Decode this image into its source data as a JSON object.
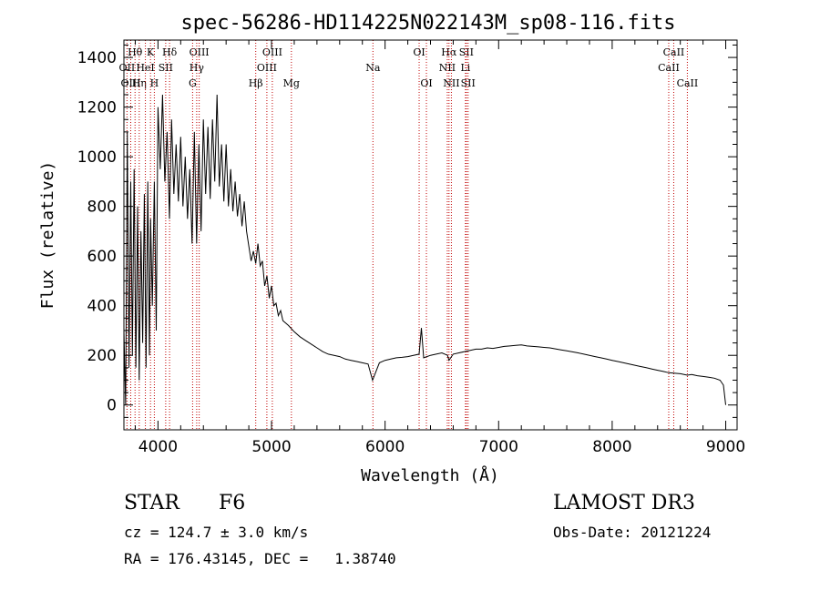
{
  "chart_data": {
    "type": "line",
    "title": "spec-56286-HD114225N022143M_sp08-116.fits",
    "xlabel": "Wavelength (Å)",
    "ylabel": "Flux (relative)",
    "xlim": [
      3700,
      9100
    ],
    "ylim": [
      -100,
      1470
    ],
    "xticks": [
      4000,
      5000,
      6000,
      7000,
      8000,
      9000
    ],
    "yticks": [
      0,
      200,
      400,
      600,
      800,
      1000,
      1200,
      1400
    ],
    "grid": false,
    "series": [
      {
        "name": "spectrum",
        "x": [
          3700,
          3715,
          3730,
          3745,
          3760,
          3775,
          3790,
          3805,
          3820,
          3835,
          3850,
          3865,
          3880,
          3895,
          3910,
          3925,
          3935,
          3950,
          3968,
          3985,
          4000,
          4020,
          4040,
          4060,
          4080,
          4101,
          4120,
          4140,
          4160,
          4180,
          4200,
          4220,
          4240,
          4260,
          4280,
          4300,
          4320,
          4340,
          4360,
          4380,
          4400,
          4420,
          4440,
          4460,
          4480,
          4500,
          4520,
          4540,
          4560,
          4580,
          4600,
          4620,
          4640,
          4660,
          4680,
          4700,
          4720,
          4740,
          4760,
          4780,
          4800,
          4820,
          4840,
          4861,
          4880,
          4900,
          4920,
          4940,
          4960,
          4980,
          5000,
          5020,
          5040,
          5060,
          5080,
          5100,
          5150,
          5200,
          5250,
          5300,
          5350,
          5400,
          5450,
          5500,
          5550,
          5600,
          5650,
          5700,
          5750,
          5800,
          5850,
          5890,
          5950,
          6000,
          6050,
          6100,
          6150,
          6200,
          6250,
          6300,
          6320,
          6340,
          6400,
          6450,
          6500,
          6550,
          6563,
          6600,
          6650,
          6700,
          6750,
          6800,
          6850,
          6900,
          6950,
          7000,
          7050,
          7100,
          7150,
          7200,
          7250,
          7300,
          7350,
          7400,
          7450,
          7500,
          7550,
          7600,
          7650,
          7700,
          7750,
          7800,
          7850,
          7900,
          7950,
          8000,
          8050,
          8100,
          8150,
          8200,
          8250,
          8300,
          8350,
          8400,
          8450,
          8498,
          8542,
          8600,
          8662,
          8700,
          8750,
          8800,
          8850,
          8900,
          8950,
          8980,
          9000
        ],
        "y": [
          300,
          0,
          1100,
          150,
          900,
          200,
          950,
          150,
          800,
          100,
          700,
          250,
          850,
          150,
          900,
          200,
          750,
          400,
          900,
          300,
          1200,
          950,
          1250,
          900,
          1100,
          750,
          1150,
          850,
          1050,
          820,
          1080,
          800,
          1000,
          750,
          950,
          650,
          1100,
          650,
          1050,
          700,
          1150,
          850,
          1120,
          830,
          1150,
          900,
          1250,
          880,
          1050,
          820,
          1050,
          800,
          950,
          780,
          900,
          760,
          850,
          720,
          820,
          700,
          640,
          580,
          620,
          570,
          650,
          560,
          580,
          480,
          520,
          430,
          480,
          400,
          410,
          360,
          380,
          340,
          320,
          295,
          275,
          260,
          245,
          230,
          215,
          205,
          200,
          195,
          185,
          180,
          175,
          170,
          165,
          100,
          170,
          180,
          185,
          190,
          192,
          195,
          200,
          205,
          310,
          190,
          200,
          205,
          210,
          200,
          180,
          205,
          210,
          215,
          220,
          225,
          225,
          230,
          228,
          232,
          236,
          238,
          240,
          242,
          238,
          236,
          234,
          232,
          230,
          226,
          222,
          218,
          214,
          210,
          205,
          200,
          195,
          190,
          185,
          180,
          175,
          170,
          165,
          160,
          155,
          150,
          145,
          140,
          135,
          130,
          128,
          126,
          120,
          123,
          118,
          115,
          112,
          108,
          100,
          80,
          0
        ]
      }
    ],
    "lines": [
      {
        "label": "Hθ",
        "x": 3798,
        "row": 1
      },
      {
        "label": "OII",
        "x": 3727,
        "row": 2
      },
      {
        "label": "OIII",
        "x": 3760,
        "row": 3
      },
      {
        "label": "Hη",
        "x": 3835,
        "row": 3
      },
      {
        "label": "HeI",
        "x": 3889,
        "row": 2
      },
      {
        "label": "K",
        "x": 3934,
        "row": 1
      },
      {
        "label": "H",
        "x": 3968,
        "row": 3
      },
      {
        "label": "SII",
        "x": 4068,
        "row": 2
      },
      {
        "label": "Hδ",
        "x": 4102,
        "row": 1
      },
      {
        "label": "OIII",
        "x": 4363,
        "row": 1
      },
      {
        "label": "Hγ",
        "x": 4341,
        "row": 2
      },
      {
        "label": "G",
        "x": 4305,
        "row": 3
      },
      {
        "label": "Hβ",
        "x": 4861,
        "row": 3
      },
      {
        "label": "OIII",
        "x": 5007,
        "row": 1
      },
      {
        "label": "OIII",
        "x": 4959,
        "row": 2
      },
      {
        "label": "Mg",
        "x": 5175,
        "row": 3
      },
      {
        "label": "Na",
        "x": 5893,
        "row": 2
      },
      {
        "label": "OI",
        "x": 6300,
        "row": 1
      },
      {
        "label": "OI",
        "x": 6364,
        "row": 3
      },
      {
        "label": "Hα",
        "x": 6563,
        "row": 1
      },
      {
        "label": "SII",
        "x": 6716,
        "row": 1
      },
      {
        "label": "NII",
        "x": 6548,
        "row": 2
      },
      {
        "label": "Li",
        "x": 6708,
        "row": 2
      },
      {
        "label": "NII",
        "x": 6584,
        "row": 3
      },
      {
        "label": "SII",
        "x": 6731,
        "row": 3
      },
      {
        "label": "CaII",
        "x": 8542,
        "row": 1
      },
      {
        "label": "CaII",
        "x": 8498,
        "row": 2
      },
      {
        "label": "CaII",
        "x": 8662,
        "row": 3
      }
    ]
  },
  "info": {
    "class": "STAR",
    "subclass": "F6",
    "cz": "cz = 124.7 ± 3.0 km/s",
    "coords": "RA = 176.43145, DEC =   1.38740",
    "survey": "LAMOST DR3",
    "obs_date": "Obs-Date: 20121224"
  }
}
